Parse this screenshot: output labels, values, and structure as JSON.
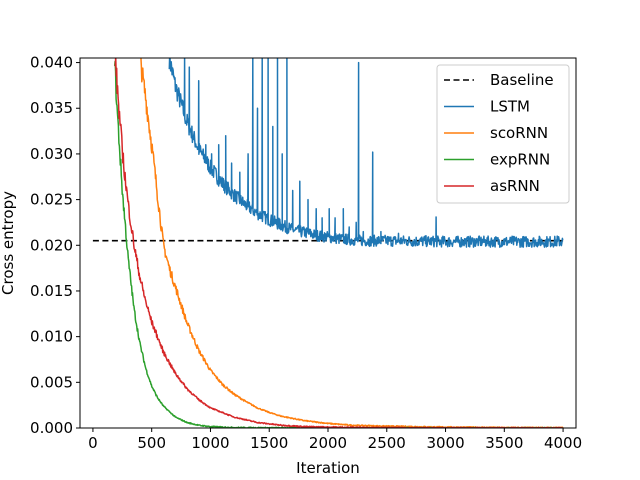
{
  "chart_data": {
    "type": "line",
    "title": "",
    "xlabel": "Iteration",
    "ylabel": "Cross entropy",
    "xlim": [
      -110,
      4110
    ],
    "ylim": [
      0.0,
      0.0405
    ],
    "xticks": [
      0,
      500,
      1000,
      1500,
      2000,
      2500,
      3000,
      3500,
      4000
    ],
    "yticks": [
      0.0,
      0.005,
      0.01,
      0.015,
      0.02,
      0.025,
      0.03,
      0.035,
      0.04
    ],
    "ytick_labels": [
      "0.000",
      "0.005",
      "0.010",
      "0.015",
      "0.020",
      "0.025",
      "0.030",
      "0.035",
      "0.040"
    ],
    "xtick_labels": [
      "0",
      "500",
      "1000",
      "1500",
      "2000",
      "2500",
      "3000",
      "3500",
      "4000"
    ],
    "legend_position": "top-right",
    "series": [
      {
        "name": "Baseline",
        "color": "#000000",
        "style": "dashed",
        "x": [
          0,
          4000
        ],
        "y": [
          0.0205,
          0.0205
        ]
      },
      {
        "name": "LSTM",
        "color": "#1f77b4",
        "style": "solid",
        "x": [
          650,
          700,
          800,
          900,
          1000,
          1100,
          1200,
          1300,
          1400,
          1500,
          1600,
          1700,
          1800,
          1900,
          2000,
          2100,
          2200,
          2300,
          2500,
          3000,
          3500,
          4000
        ],
        "y": [
          0.0405,
          0.0375,
          0.0335,
          0.0305,
          0.0285,
          0.0268,
          0.0255,
          0.0244,
          0.0235,
          0.0228,
          0.0222,
          0.0217,
          0.0214,
          0.0211,
          0.0209,
          0.0207,
          0.0206,
          0.0205,
          0.0205,
          0.0204,
          0.0204,
          0.0204
        ],
        "spikes": [
          [
            780,
            0.0405
          ],
          [
            820,
            0.0395
          ],
          [
            900,
            0.038
          ],
          [
            960,
            0.031
          ],
          [
            1010,
            0.03
          ],
          [
            1070,
            0.031
          ],
          [
            1130,
            0.032
          ],
          [
            1180,
            0.029
          ],
          [
            1250,
            0.028
          ],
          [
            1320,
            0.03
          ],
          [
            1360,
            0.0405
          ],
          [
            1400,
            0.035
          ],
          [
            1440,
            0.0405
          ],
          [
            1490,
            0.0405
          ],
          [
            1530,
            0.033
          ],
          [
            1570,
            0.0405
          ],
          [
            1610,
            0.03
          ],
          [
            1650,
            0.0405
          ],
          [
            1700,
            0.026
          ],
          [
            1760,
            0.027
          ],
          [
            1830,
            0.025
          ],
          [
            1900,
            0.024
          ],
          [
            1950,
            0.023
          ],
          [
            2010,
            0.024
          ],
          [
            2060,
            0.023
          ],
          [
            2130,
            0.024
          ],
          [
            2180,
            0.022
          ],
          [
            2240,
            0.0225
          ],
          [
            2260,
            0.04
          ],
          [
            2300,
            0.0215
          ],
          [
            2380,
            0.0302
          ],
          [
            2450,
            0.0215
          ],
          [
            2600,
            0.0213
          ],
          [
            2920,
            0.0231
          ],
          [
            3200,
            0.0208
          ],
          [
            3500,
            0.0207
          ],
          [
            3950,
            0.021
          ]
        ]
      },
      {
        "name": "scoRNN",
        "color": "#ff7f0e",
        "style": "solid",
        "x": [
          400,
          450,
          500,
          550,
          600,
          650,
          700,
          750,
          800,
          900,
          1000,
          1100,
          1200,
          1300,
          1400,
          1500,
          1600,
          1800,
          2000,
          2200,
          2500,
          3000,
          3500,
          4000
        ],
        "y": [
          0.0405,
          0.036,
          0.031,
          0.0255,
          0.02,
          0.0175,
          0.0155,
          0.0135,
          0.0115,
          0.0085,
          0.0063,
          0.0048,
          0.0037,
          0.0029,
          0.0022,
          0.0017,
          0.0013,
          0.0008,
          0.0005,
          0.0003,
          0.0002,
          0.0001,
          5e-05,
          3e-05
        ],
        "spikes": []
      },
      {
        "name": "expRNN",
        "color": "#2ca02c",
        "style": "solid",
        "x": [
          185,
          200,
          250,
          300,
          350,
          400,
          450,
          500,
          550,
          600,
          700,
          800,
          900,
          1000,
          1200,
          1500,
          2000,
          3000,
          4000
        ],
        "y": [
          0.0405,
          0.036,
          0.026,
          0.0185,
          0.013,
          0.0092,
          0.0065,
          0.0046,
          0.0033,
          0.0024,
          0.0012,
          0.0006,
          0.0003,
          0.00015,
          5e-05,
          2e-05,
          1e-05,
          0.0,
          0.0
        ],
        "spikes": []
      },
      {
        "name": "asRNN",
        "color": "#d62728",
        "style": "solid",
        "x": [
          190,
          220,
          260,
          300,
          350,
          400,
          450,
          500,
          600,
          700,
          800,
          900,
          1000,
          1200,
          1400,
          1600,
          1800,
          2000,
          2500,
          3000,
          4000
        ],
        "y": [
          0.0405,
          0.035,
          0.029,
          0.0245,
          0.02,
          0.0165,
          0.0138,
          0.0116,
          0.0083,
          0.006,
          0.0043,
          0.0031,
          0.0022,
          0.0012,
          0.0006,
          0.0003,
          0.00015,
          0.0001,
          3e-05,
          1e-05,
          0.0
        ],
        "spikes": []
      }
    ]
  }
}
